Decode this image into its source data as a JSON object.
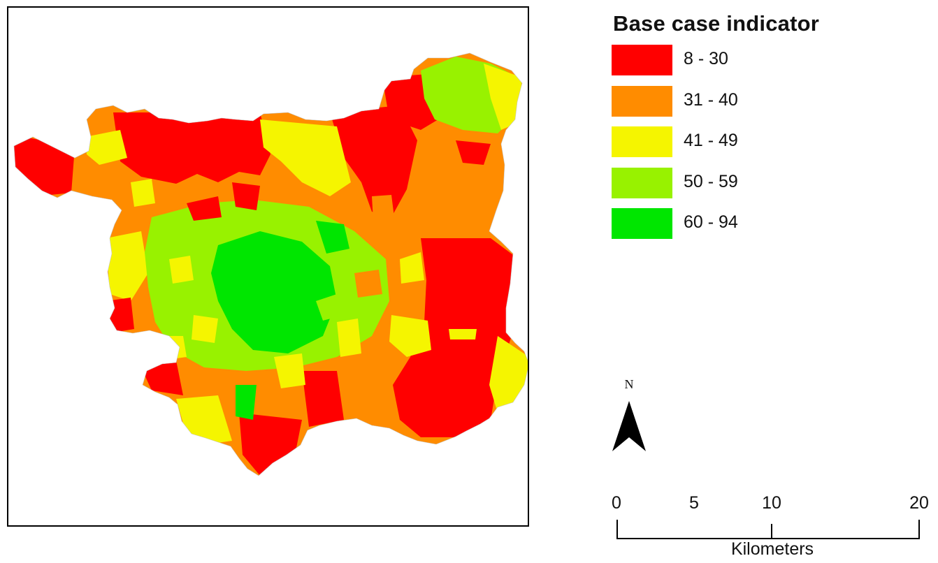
{
  "legend": {
    "title": "Base case indicator",
    "classes": [
      {
        "label": "8 - 30",
        "color": "#ff0000"
      },
      {
        "label": "31 - 40",
        "color": "#ff8c00"
      },
      {
        "label": "41 - 49",
        "color": "#f5f500"
      },
      {
        "label": "50 - 59",
        "color": "#98f200"
      },
      {
        "label": "60 - 94",
        "color": "#00e600"
      }
    ]
  },
  "north_arrow": {
    "label": "N"
  },
  "scale_bar": {
    "ticks": [
      "0",
      "5",
      "10",
      "20"
    ],
    "unit": "Kilometers"
  }
}
